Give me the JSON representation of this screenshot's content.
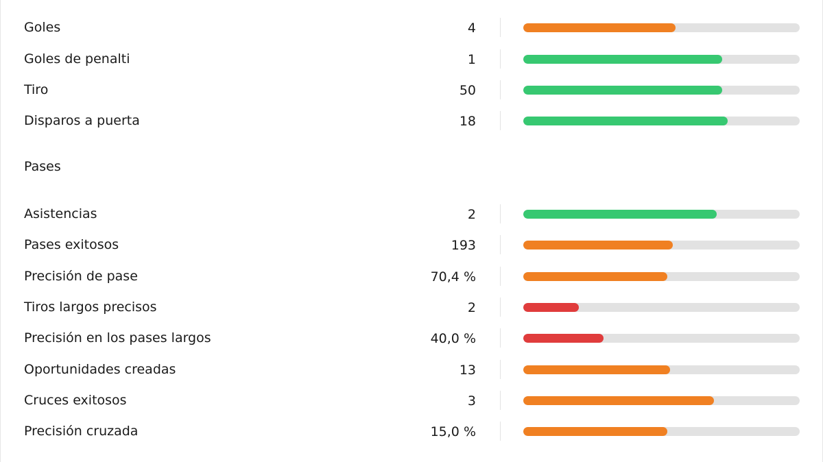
{
  "colors": {
    "high": "#37c871",
    "mid": "#f08022",
    "low": "#e03c3c",
    "track": "#e2e2e2"
  },
  "top_group": {
    "rows": [
      {
        "label": "Goles",
        "value": "4",
        "percentile": 0.55,
        "tier": "mid"
      },
      {
        "label": "Goles de penalti",
        "value": "1",
        "percentile": 0.72,
        "tier": "high"
      },
      {
        "label": "Tiro",
        "value": "50",
        "percentile": 0.72,
        "tier": "high"
      },
      {
        "label": "Disparos a puerta",
        "value": "18",
        "percentile": 0.74,
        "tier": "high"
      }
    ]
  },
  "passes_section": {
    "title": "Pases",
    "rows": [
      {
        "label": "Asistencias",
        "value": "2",
        "percentile": 0.7,
        "tier": "high"
      },
      {
        "label": "Pases exitosos",
        "value": "193",
        "percentile": 0.54,
        "tier": "mid"
      },
      {
        "label": "Precisión de pase",
        "value": "70,4 %",
        "percentile": 0.52,
        "tier": "mid"
      },
      {
        "label": "Tiros largos precisos",
        "value": "2",
        "percentile": 0.2,
        "tier": "low"
      },
      {
        "label": "Precisión en los pases largos",
        "value": "40,0 %",
        "percentile": 0.29,
        "tier": "low"
      },
      {
        "label": "Oportunidades creadas",
        "value": "13",
        "percentile": 0.53,
        "tier": "mid"
      },
      {
        "label": "Cruces exitosos",
        "value": "3",
        "percentile": 0.69,
        "tier": "mid"
      },
      {
        "label": "Precisión cruzada",
        "value": "15,0 %",
        "percentile": 0.52,
        "tier": "mid"
      }
    ]
  }
}
